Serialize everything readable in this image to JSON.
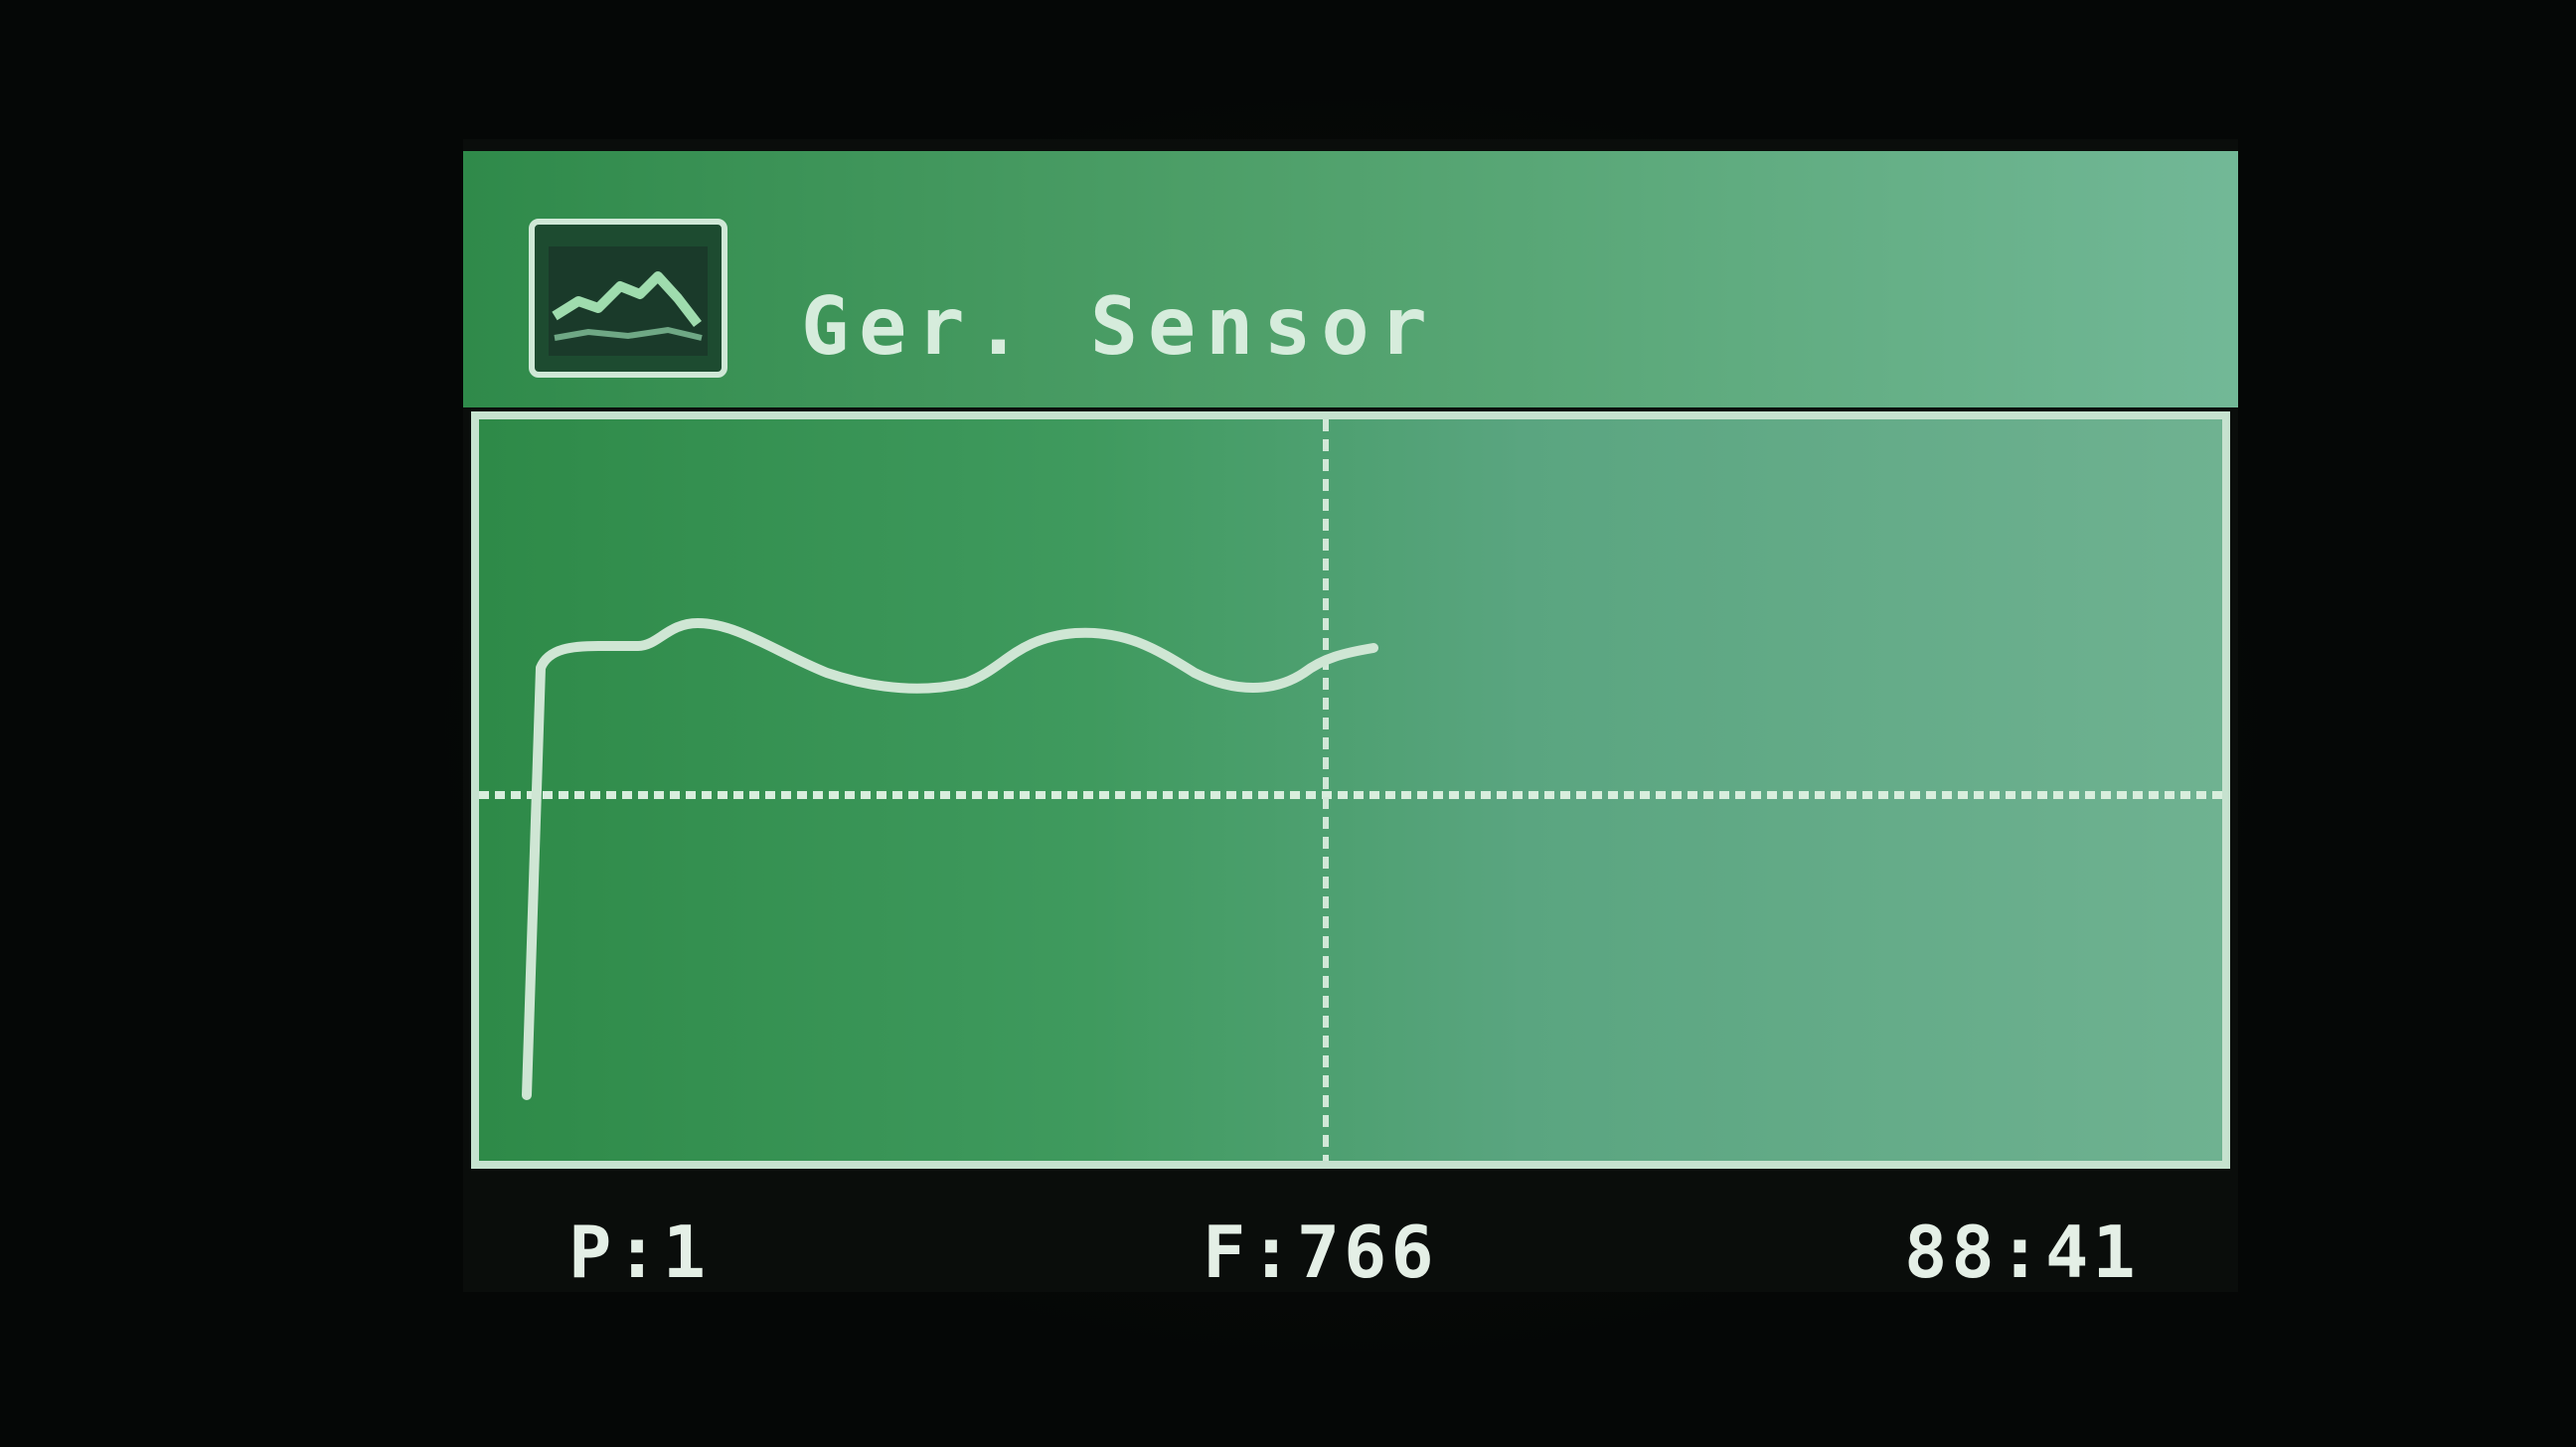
{
  "header": {
    "icon": "graph-icon",
    "title": "Ger. Sensor"
  },
  "status": {
    "left": "P:1",
    "center": "F:766",
    "right": "88:41"
  },
  "colors": {
    "screen_green": "#3f9a5e",
    "trace": "#cfe6d4"
  }
}
